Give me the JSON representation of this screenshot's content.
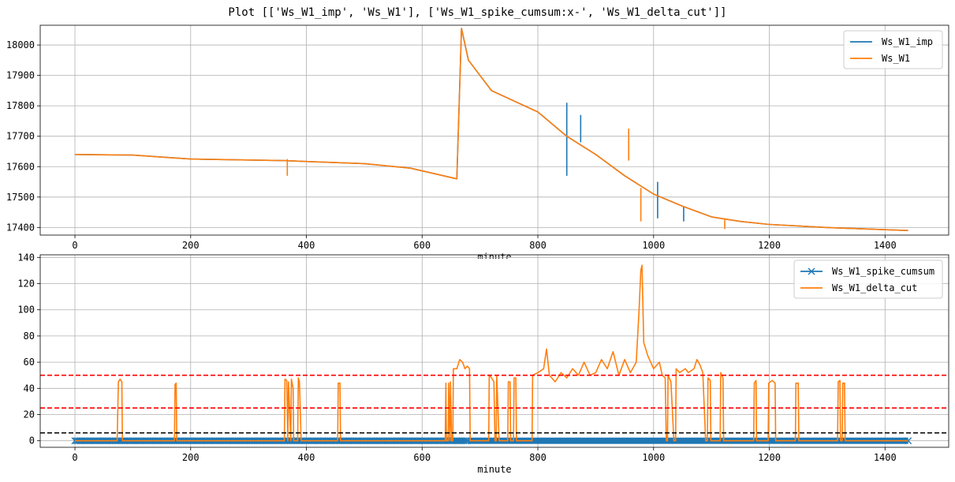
{
  "figure_title": "Plot [['Ws_W1_imp', 'Ws_W1'], ['Ws_W1_spike_cumsum:x-', 'Ws_W1_delta_cut']]",
  "colors": {
    "blue": "#1f77b4",
    "orange": "#ff7f0e",
    "red": "#ff0000",
    "black": "#000000",
    "grid": "#b0b0b0"
  },
  "chart_data": [
    {
      "type": "line",
      "xlabel": "minute",
      "xlim": [
        -60,
        1510
      ],
      "ylim": [
        17375,
        18065
      ],
      "xticks": [
        0,
        200,
        400,
        600,
        800,
        1000,
        1200,
        1400
      ],
      "yticks": [
        17400,
        17500,
        17600,
        17700,
        17800,
        17900,
        18000
      ],
      "grid": true,
      "legend_position": "upper right",
      "series": [
        {
          "name": "Ws_W1_imp",
          "color": "#1f77b4",
          "points": [
            [
              0,
              17640
            ],
            [
              100,
              17638
            ],
            [
              200,
              17625
            ],
            [
              360,
              17620
            ],
            [
              500,
              17610
            ],
            [
              580,
              17595
            ],
            [
              660,
              17560
            ],
            [
              668,
              18055
            ],
            [
              680,
              17950
            ],
            [
              720,
              17850
            ],
            [
              800,
              17780
            ],
            [
              850,
              17700
            ],
            [
              900,
              17640
            ],
            [
              950,
              17570
            ],
            [
              1000,
              17510
            ],
            [
              1050,
              17470
            ],
            [
              1100,
              17435
            ],
            [
              1150,
              17420
            ],
            [
              1200,
              17410
            ],
            [
              1300,
              17400
            ],
            [
              1440,
              17390
            ]
          ],
          "spikes": [
            [
              850,
              17570,
              17810
            ],
            [
              874,
              17680,
              17770
            ],
            [
              1007,
              17430,
              17550
            ],
            [
              1052,
              17420,
              17470
            ]
          ]
        },
        {
          "name": "Ws_W1",
          "color": "#ff7f0e",
          "points": [
            [
              0,
              17640
            ],
            [
              100,
              17638
            ],
            [
              160,
              17630
            ],
            [
              200,
              17625
            ],
            [
              360,
              17620
            ],
            [
              500,
              17610
            ],
            [
              580,
              17595
            ],
            [
              660,
              17560
            ],
            [
              668,
              18055
            ],
            [
              680,
              17950
            ],
            [
              720,
              17850
            ],
            [
              800,
              17780
            ],
            [
              850,
              17700
            ],
            [
              900,
              17640
            ],
            [
              950,
              17570
            ],
            [
              1000,
              17510
            ],
            [
              1050,
              17470
            ],
            [
              1100,
              17435
            ],
            [
              1150,
              17420
            ],
            [
              1200,
              17410
            ],
            [
              1300,
              17400
            ],
            [
              1440,
              17390
            ]
          ],
          "spikes": [
            [
              367,
              17570,
              17625
            ],
            [
              957,
              17620,
              17725
            ],
            [
              978,
              17420,
              17530
            ],
            [
              1123,
              17395,
              17430
            ]
          ]
        }
      ]
    },
    {
      "type": "line",
      "xlabel": "minute",
      "xlim": [
        -60,
        1510
      ],
      "ylim": [
        -5,
        142
      ],
      "xticks": [
        0,
        200,
        400,
        600,
        800,
        1000,
        1200,
        1400
      ],
      "yticks": [
        0,
        20,
        40,
        60,
        80,
        100,
        120,
        140
      ],
      "grid": true,
      "legend_position": "upper right",
      "hlines": [
        {
          "y": 50,
          "color": "#ff0000",
          "style": "dashed"
        },
        {
          "y": 25,
          "color": "#ff0000",
          "style": "dashed"
        },
        {
          "y": 6,
          "color": "#000000",
          "style": "dashed"
        }
      ],
      "series": [
        {
          "name": "Ws_W1_spike_cumsum",
          "color": "#1f77b4",
          "marker": "x",
          "x_range": [
            0,
            1440
          ],
          "dense_range": [
            680,
            1440
          ],
          "value": 0
        },
        {
          "name": "Ws_W1_delta_cut",
          "color": "#ff7f0e",
          "points": [
            [
              0,
              0
            ],
            [
              73,
              0
            ],
            [
              75,
              45
            ],
            [
              78,
              47
            ],
            [
              81,
              45
            ],
            [
              82,
              0
            ],
            [
              172,
              0
            ],
            [
              173,
              43
            ],
            [
              175,
              44
            ],
            [
              176,
              0
            ],
            [
              362,
              0
            ],
            [
              363,
              47
            ],
            [
              366,
              46
            ],
            [
              368,
              0
            ],
            [
              369,
              45
            ],
            [
              373,
              0
            ],
            [
              374,
              47
            ],
            [
              377,
              40
            ],
            [
              378,
              0
            ],
            [
              385,
              0
            ],
            [
              386,
              48
            ],
            [
              388,
              45
            ],
            [
              391,
              0
            ],
            [
              454,
              0
            ],
            [
              455,
              44
            ],
            [
              458,
              44
            ],
            [
              459,
              0
            ],
            [
              640,
              0
            ],
            [
              641,
              44
            ],
            [
              642,
              0
            ],
            [
              645,
              0
            ],
            [
              646,
              44
            ],
            [
              648,
              0
            ],
            [
              649,
              45
            ],
            [
              651,
              0
            ],
            [
              653,
              0
            ],
            [
              654,
              55
            ],
            [
              660,
              55
            ],
            [
              665,
              62
            ],
            [
              670,
              60
            ],
            [
              674,
              55
            ],
            [
              678,
              57
            ],
            [
              682,
              55
            ],
            [
              683,
              0
            ],
            [
              715,
              0
            ],
            [
              716,
              50
            ],
            [
              720,
              48
            ],
            [
              724,
              45
            ],
            [
              726,
              0
            ],
            [
              728,
              0
            ],
            [
              729,
              50
            ],
            [
              733,
              0
            ],
            [
              748,
              0
            ],
            [
              749,
              45
            ],
            [
              752,
              45
            ],
            [
              753,
              0
            ],
            [
              758,
              0
            ],
            [
              759,
              48
            ],
            [
              762,
              48
            ],
            [
              763,
              0
            ],
            [
              790,
              0
            ],
            [
              791,
              50
            ],
            [
              800,
              52
            ],
            [
              810,
              55
            ],
            [
              815,
              70
            ],
            [
              820,
              50
            ],
            [
              830,
              45
            ],
            [
              840,
              52
            ],
            [
              850,
              48
            ],
            [
              860,
              55
            ],
            [
              870,
              50
            ],
            [
              880,
              60
            ],
            [
              890,
              50
            ],
            [
              900,
              52
            ],
            [
              910,
              62
            ],
            [
              920,
              55
            ],
            [
              930,
              68
            ],
            [
              940,
              50
            ],
            [
              950,
              62
            ],
            [
              960,
              52
            ],
            [
              970,
              60
            ],
            [
              975,
              100
            ],
            [
              978,
              130
            ],
            [
              980,
              134
            ],
            [
              983,
              75
            ],
            [
              990,
              65
            ],
            [
              1000,
              55
            ],
            [
              1010,
              60
            ],
            [
              1015,
              50
            ],
            [
              1020,
              48
            ],
            [
              1022,
              0
            ],
            [
              1024,
              0
            ],
            [
              1025,
              50
            ],
            [
              1030,
              45
            ],
            [
              1035,
              0
            ],
            [
              1038,
              0
            ],
            [
              1039,
              55
            ],
            [
              1045,
              52
            ],
            [
              1055,
              55
            ],
            [
              1060,
              52
            ],
            [
              1070,
              55
            ],
            [
              1075,
              62
            ],
            [
              1080,
              58
            ],
            [
              1085,
              52
            ],
            [
              1090,
              0
            ],
            [
              1093,
              0
            ],
            [
              1094,
              48
            ],
            [
              1098,
              46
            ],
            [
              1099,
              0
            ],
            [
              1115,
              0
            ],
            [
              1116,
              52
            ],
            [
              1120,
              48
            ],
            [
              1121,
              0
            ],
            [
              1173,
              0
            ],
            [
              1174,
              44
            ],
            [
              1177,
              46
            ],
            [
              1178,
              0
            ],
            [
              1198,
              0
            ],
            [
              1199,
              44
            ],
            [
              1205,
              46
            ],
            [
              1210,
              44
            ],
            [
              1211,
              0
            ],
            [
              1245,
              0
            ],
            [
              1246,
              44
            ],
            [
              1250,
              44
            ],
            [
              1251,
              0
            ],
            [
              1318,
              0
            ],
            [
              1319,
              45
            ],
            [
              1322,
              46
            ],
            [
              1323,
              0
            ],
            [
              1326,
              0
            ],
            [
              1327,
              44
            ],
            [
              1330,
              44
            ],
            [
              1331,
              0
            ],
            [
              1440,
              0
            ]
          ]
        }
      ]
    }
  ]
}
